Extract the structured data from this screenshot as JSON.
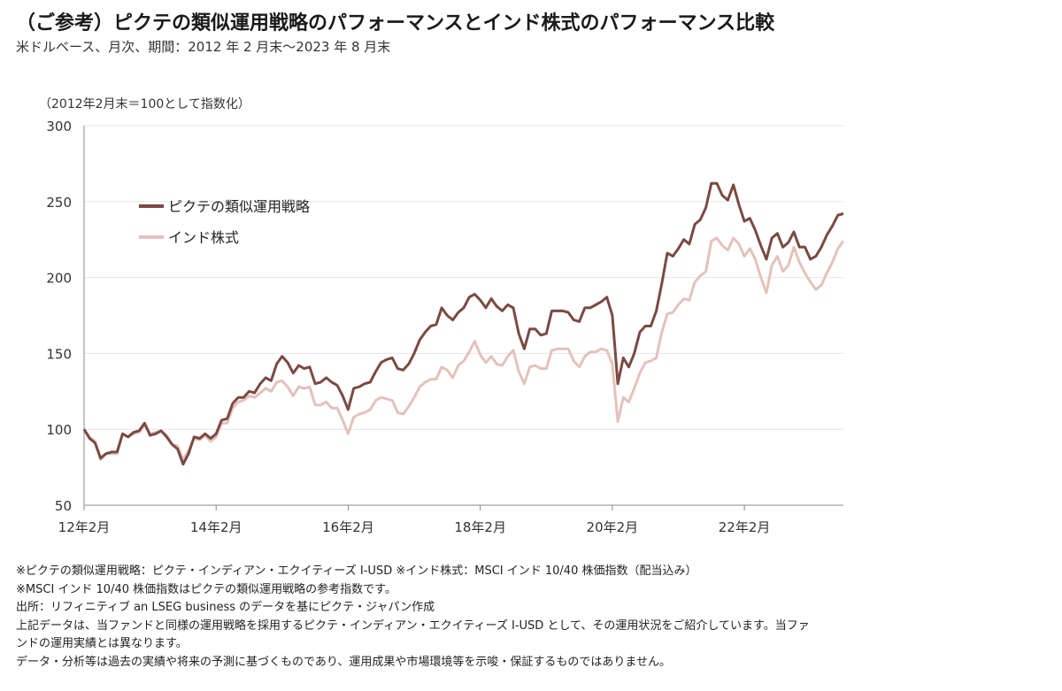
{
  "header": {
    "title": "（ご参考）ピクテの類似運用戦略のパフォーマンスとインド株式のパフォーマンス比較",
    "subtitle": "米ドルベース、月次、期間：2012 年 2 月末～2023 年 8 月末"
  },
  "notes": [
    "※ピクテの類似運用戦略：ピクテ・インディアン・エクイティーズ I-USD ※インド株式：MSCI インド 10/40 株価指数（配当込み）",
    "※MSCI インド 10/40 株価指数はピクテの類似運用戦略の参考指数です。",
    "出所：リフィニティブ an LSEG business のデータを基にピクテ・ジャパン作成",
    "上記データは、当ファンドと同様の運用戦略を採用するピクテ・インディアン・エクイティーズ I-USD として、その運用状況をご紹介しています。当ファ",
    "ンドの運用実績とは異なります。",
    "データ・分析等は過去の実績や将来の予測に基づくものであり、運用成果や市場環境等を示唆・保証するものではありません。"
  ],
  "colors": {
    "strategy": "#7a4a42",
    "india": "#e3c2bb",
    "grid": "#e6e6e6",
    "axis": "#888888"
  },
  "chart_data": {
    "type": "line",
    "title": "",
    "ylabel": "（2012年2月末＝100として指数化）",
    "xlabel": "",
    "ylim": [
      50,
      300
    ],
    "yticks": [
      50,
      100,
      150,
      200,
      250,
      300
    ],
    "grid": true,
    "legend_position": "top-left",
    "x_start": "2012-02",
    "x_end": "2023-08",
    "xticks": [
      {
        "x": "2012-02",
        "label": "12年2月"
      },
      {
        "x": "2014-02",
        "label": "14年2月"
      },
      {
        "x": "2016-02",
        "label": "16年2月"
      },
      {
        "x": "2018-02",
        "label": "18年2月"
      },
      {
        "x": "2020-02",
        "label": "20年2月"
      },
      {
        "x": "2022-02",
        "label": "22年2月"
      }
    ],
    "series": [
      {
        "name": "ピクテの類似運用戦略",
        "points": [
          [
            "2012-02",
            100
          ],
          [
            "2012-03",
            94
          ],
          [
            "2012-04",
            91
          ],
          [
            "2012-05",
            81
          ],
          [
            "2012-06",
            84
          ],
          [
            "2012-07",
            85
          ],
          [
            "2012-08",
            85
          ],
          [
            "2012-09",
            97
          ],
          [
            "2012-10",
            95
          ],
          [
            "2012-11",
            98
          ],
          [
            "2012-12",
            99
          ],
          [
            "2013-01",
            104
          ],
          [
            "2013-02",
            96
          ],
          [
            "2013-03",
            97
          ],
          [
            "2013-04",
            99
          ],
          [
            "2013-05",
            95
          ],
          [
            "2013-06",
            90
          ],
          [
            "2013-07",
            87
          ],
          [
            "2013-08",
            77
          ],
          [
            "2013-09",
            84
          ],
          [
            "2013-10",
            95
          ],
          [
            "2013-11",
            94
          ],
          [
            "2013-12",
            97
          ],
          [
            "2014-01",
            94
          ],
          [
            "2014-02",
            97
          ],
          [
            "2014-03",
            106
          ],
          [
            "2014-04",
            107
          ],
          [
            "2014-05",
            117
          ],
          [
            "2014-06",
            121
          ],
          [
            "2014-07",
            121
          ],
          [
            "2014-08",
            125
          ],
          [
            "2014-09",
            124
          ],
          [
            "2014-10",
            130
          ],
          [
            "2014-11",
            134
          ],
          [
            "2014-12",
            132
          ],
          [
            "2015-01",
            143
          ],
          [
            "2015-02",
            148
          ],
          [
            "2015-03",
            144
          ],
          [
            "2015-04",
            137
          ],
          [
            "2015-05",
            142
          ],
          [
            "2015-06",
            140
          ],
          [
            "2015-07",
            141
          ],
          [
            "2015-08",
            130
          ],
          [
            "2015-09",
            131
          ],
          [
            "2015-10",
            134
          ],
          [
            "2015-11",
            131
          ],
          [
            "2015-12",
            129
          ],
          [
            "2016-01",
            122
          ],
          [
            "2016-02",
            113
          ],
          [
            "2016-03",
            127
          ],
          [
            "2016-04",
            128
          ],
          [
            "2016-05",
            130
          ],
          [
            "2016-06",
            131
          ],
          [
            "2016-07",
            138
          ],
          [
            "2016-08",
            144
          ],
          [
            "2016-09",
            146
          ],
          [
            "2016-10",
            147
          ],
          [
            "2016-11",
            140
          ],
          [
            "2016-12",
            139
          ],
          [
            "2017-01",
            143
          ],
          [
            "2017-02",
            150
          ],
          [
            "2017-03",
            159
          ],
          [
            "2017-04",
            164
          ],
          [
            "2017-05",
            168
          ],
          [
            "2017-06",
            169
          ],
          [
            "2017-07",
            180
          ],
          [
            "2017-08",
            175
          ],
          [
            "2017-09",
            172
          ],
          [
            "2017-10",
            177
          ],
          [
            "2017-11",
            180
          ],
          [
            "2017-12",
            187
          ],
          [
            "2018-01",
            189
          ],
          [
            "2018-02",
            185
          ],
          [
            "2018-03",
            180
          ],
          [
            "2018-04",
            186
          ],
          [
            "2018-05",
            181
          ],
          [
            "2018-06",
            178
          ],
          [
            "2018-07",
            182
          ],
          [
            "2018-08",
            180
          ],
          [
            "2018-09",
            163
          ],
          [
            "2018-10",
            153
          ],
          [
            "2018-11",
            166
          ],
          [
            "2018-12",
            166
          ],
          [
            "2019-01",
            162
          ],
          [
            "2019-02",
            163
          ],
          [
            "2019-03",
            178
          ],
          [
            "2019-04",
            178
          ],
          [
            "2019-05",
            178
          ],
          [
            "2019-06",
            177
          ],
          [
            "2019-07",
            172
          ],
          [
            "2019-08",
            171
          ],
          [
            "2019-09",
            180
          ],
          [
            "2019-10",
            180
          ],
          [
            "2019-11",
            182
          ],
          [
            "2019-12",
            184
          ],
          [
            "2020-01",
            187
          ],
          [
            "2020-02",
            175
          ],
          [
            "2020-03",
            130
          ],
          [
            "2020-04",
            147
          ],
          [
            "2020-05",
            141
          ],
          [
            "2020-06",
            150
          ],
          [
            "2020-07",
            164
          ],
          [
            "2020-08",
            168
          ],
          [
            "2020-09",
            168
          ],
          [
            "2020-10",
            178
          ],
          [
            "2020-11",
            196
          ],
          [
            "2020-12",
            216
          ],
          [
            "2021-01",
            214
          ],
          [
            "2021-02",
            219
          ],
          [
            "2021-03",
            225
          ],
          [
            "2021-04",
            222
          ],
          [
            "2021-05",
            235
          ],
          [
            "2021-06",
            238
          ],
          [
            "2021-07",
            246
          ],
          [
            "2021-08",
            262
          ],
          [
            "2021-09",
            262
          ],
          [
            "2021-10",
            254
          ],
          [
            "2021-11",
            251
          ],
          [
            "2021-12",
            261
          ],
          [
            "2022-01",
            248
          ],
          [
            "2022-02",
            237
          ],
          [
            "2022-03",
            239
          ],
          [
            "2022-04",
            231
          ],
          [
            "2022-05",
            221
          ],
          [
            "2022-06",
            212
          ],
          [
            "2022-07",
            226
          ],
          [
            "2022-08",
            229
          ],
          [
            "2022-09",
            220
          ],
          [
            "2022-10",
            223
          ],
          [
            "2022-11",
            230
          ],
          [
            "2022-12",
            220
          ],
          [
            "2023-01",
            220
          ],
          [
            "2023-02",
            212
          ],
          [
            "2023-03",
            214
          ],
          [
            "2023-04",
            220
          ],
          [
            "2023-05",
            228
          ],
          [
            "2023-06",
            234
          ],
          [
            "2023-07",
            241
          ],
          [
            "2023-08",
            242
          ]
        ]
      },
      {
        "name": "インド株式",
        "points": [
          [
            "2012-02",
            100
          ],
          [
            "2012-03",
            95
          ],
          [
            "2012-04",
            92
          ],
          [
            "2012-05",
            80
          ],
          [
            "2012-06",
            84
          ],
          [
            "2012-07",
            84
          ],
          [
            "2012-08",
            84
          ],
          [
            "2012-09",
            97
          ],
          [
            "2012-10",
            95
          ],
          [
            "2012-11",
            97
          ],
          [
            "2012-12",
            98
          ],
          [
            "2013-01",
            103
          ],
          [
            "2013-02",
            97
          ],
          [
            "2013-03",
            98
          ],
          [
            "2013-04",
            99
          ],
          [
            "2013-05",
            96
          ],
          [
            "2013-06",
            90
          ],
          [
            "2013-07",
            89
          ],
          [
            "2013-08",
            80
          ],
          [
            "2013-09",
            86
          ],
          [
            "2013-10",
            94
          ],
          [
            "2013-11",
            93
          ],
          [
            "2013-12",
            96
          ],
          [
            "2014-01",
            92
          ],
          [
            "2014-02",
            95
          ],
          [
            "2014-03",
            104
          ],
          [
            "2014-04",
            104
          ],
          [
            "2014-05",
            114
          ],
          [
            "2014-06",
            118
          ],
          [
            "2014-07",
            119
          ],
          [
            "2014-08",
            122
          ],
          [
            "2014-09",
            121
          ],
          [
            "2014-10",
            124
          ],
          [
            "2014-11",
            127
          ],
          [
            "2014-12",
            125
          ],
          [
            "2015-01",
            131
          ],
          [
            "2015-02",
            132
          ],
          [
            "2015-03",
            128
          ],
          [
            "2015-04",
            122
          ],
          [
            "2015-05",
            128
          ],
          [
            "2015-06",
            127
          ],
          [
            "2015-07",
            128
          ],
          [
            "2015-08",
            116
          ],
          [
            "2015-09",
            116
          ],
          [
            "2015-10",
            118
          ],
          [
            "2015-11",
            114
          ],
          [
            "2015-12",
            114
          ],
          [
            "2016-01",
            106
          ],
          [
            "2016-02",
            97
          ],
          [
            "2016-03",
            108
          ],
          [
            "2016-04",
            110
          ],
          [
            "2016-05",
            111
          ],
          [
            "2016-06",
            113
          ],
          [
            "2016-07",
            119
          ],
          [
            "2016-08",
            121
          ],
          [
            "2016-09",
            120
          ],
          [
            "2016-10",
            119
          ],
          [
            "2016-11",
            111
          ],
          [
            "2016-12",
            110
          ],
          [
            "2017-01",
            115
          ],
          [
            "2017-02",
            121
          ],
          [
            "2017-03",
            128
          ],
          [
            "2017-04",
            131
          ],
          [
            "2017-05",
            133
          ],
          [
            "2017-06",
            133
          ],
          [
            "2017-07",
            141
          ],
          [
            "2017-08",
            139
          ],
          [
            "2017-09",
            134
          ],
          [
            "2017-10",
            142
          ],
          [
            "2017-11",
            145
          ],
          [
            "2017-12",
            151
          ],
          [
            "2018-01",
            158
          ],
          [
            "2018-02",
            149
          ],
          [
            "2018-03",
            144
          ],
          [
            "2018-04",
            148
          ],
          [
            "2018-05",
            143
          ],
          [
            "2018-06",
            142
          ],
          [
            "2018-07",
            148
          ],
          [
            "2018-08",
            152
          ],
          [
            "2018-09",
            138
          ],
          [
            "2018-10",
            130
          ],
          [
            "2018-11",
            141
          ],
          [
            "2018-12",
            142
          ],
          [
            "2019-01",
            140
          ],
          [
            "2019-02",
            140
          ],
          [
            "2019-03",
            152
          ],
          [
            "2019-04",
            153
          ],
          [
            "2019-05",
            153
          ],
          [
            "2019-06",
            153
          ],
          [
            "2019-07",
            145
          ],
          [
            "2019-08",
            141
          ],
          [
            "2019-09",
            148
          ],
          [
            "2019-10",
            151
          ],
          [
            "2019-11",
            151
          ],
          [
            "2019-12",
            153
          ],
          [
            "2020-01",
            152
          ],
          [
            "2020-02",
            143
          ],
          [
            "2020-03",
            105
          ],
          [
            "2020-04",
            121
          ],
          [
            "2020-05",
            118
          ],
          [
            "2020-06",
            127
          ],
          [
            "2020-07",
            137
          ],
          [
            "2020-08",
            144
          ],
          [
            "2020-09",
            145
          ],
          [
            "2020-10",
            147
          ],
          [
            "2020-11",
            164
          ],
          [
            "2020-12",
            176
          ],
          [
            "2021-01",
            177
          ],
          [
            "2021-02",
            182
          ],
          [
            "2021-03",
            186
          ],
          [
            "2021-04",
            185
          ],
          [
            "2021-05",
            197
          ],
          [
            "2021-06",
            201
          ],
          [
            "2021-07",
            204
          ],
          [
            "2021-08",
            224
          ],
          [
            "2021-09",
            226
          ],
          [
            "2021-10",
            221
          ],
          [
            "2021-11",
            218
          ],
          [
            "2021-12",
            226
          ],
          [
            "2022-01",
            222
          ],
          [
            "2022-02",
            214
          ],
          [
            "2022-03",
            219
          ],
          [
            "2022-04",
            212
          ],
          [
            "2022-05",
            200
          ],
          [
            "2022-06",
            190
          ],
          [
            "2022-07",
            208
          ],
          [
            "2022-08",
            214
          ],
          [
            "2022-09",
            204
          ],
          [
            "2022-10",
            208
          ],
          [
            "2022-11",
            220
          ],
          [
            "2022-12",
            210
          ],
          [
            "2023-01",
            203
          ],
          [
            "2023-02",
            197
          ],
          [
            "2023-03",
            192
          ],
          [
            "2023-04",
            195
          ],
          [
            "2023-05",
            203
          ],
          [
            "2023-06",
            210
          ],
          [
            "2023-07",
            219
          ],
          [
            "2023-08",
            224
          ]
        ]
      }
    ]
  }
}
